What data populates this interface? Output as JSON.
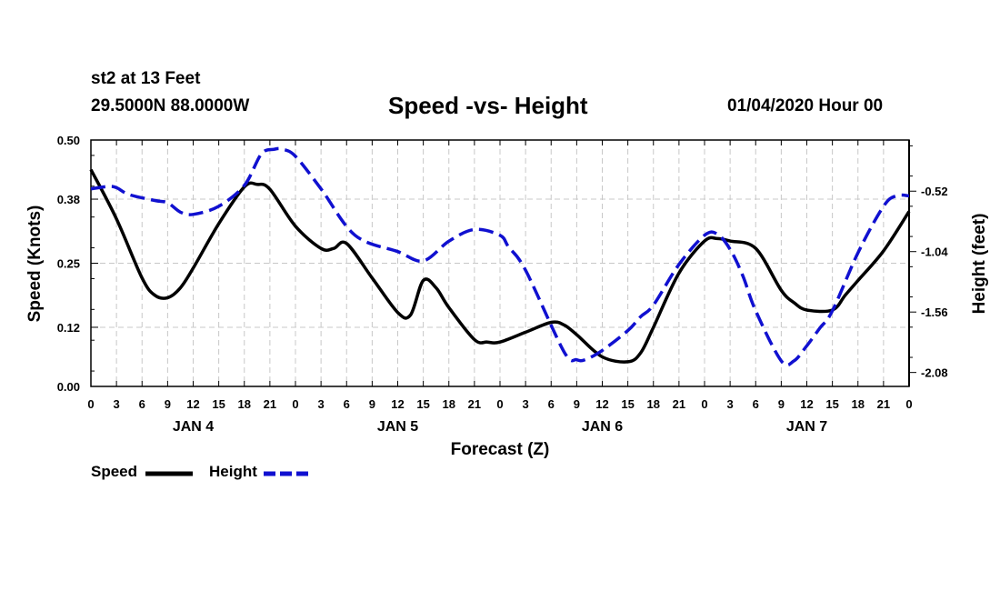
{
  "header": {
    "station": "st2 at 13 Feet",
    "coords": "29.5000N 88.0000W",
    "title": "Speed -vs- Height",
    "date": "01/04/2020 Hour 00"
  },
  "legend": {
    "speed": "Speed",
    "height": "Height"
  },
  "colors": {
    "speed": "#000000",
    "height": "#1010d0",
    "grid": "#c8c8c8"
  },
  "chart_data": {
    "type": "line",
    "title": "Speed -vs- Height",
    "xlabel": "Forecast (Z)",
    "ylabel": "Speed (Knots)",
    "y2label": "Height (feet)",
    "xlim": [
      0,
      96
    ],
    "ylim": [
      0,
      0.5
    ],
    "y2lim": [
      -2.2,
      -0.08
    ],
    "yticks": [
      "0.00",
      "0.12",
      "0.25",
      "0.38",
      "0.50"
    ],
    "y2ticks": [
      "-0.52",
      "-1.04",
      "-1.56",
      "-2.08"
    ],
    "y2tick_values": [
      -0.52,
      -1.04,
      -1.56,
      -2.08
    ],
    "xticks": [
      "0",
      "3",
      "6",
      "9",
      "12",
      "15",
      "18",
      "21",
      "0",
      "3",
      "6",
      "9",
      "12",
      "15",
      "18",
      "21",
      "0",
      "3",
      "6",
      "9",
      "12",
      "15",
      "18",
      "21",
      "0",
      "3",
      "6",
      "9",
      "12",
      "15",
      "18",
      "21",
      "0"
    ],
    "day_labels": [
      {
        "hour": 12,
        "label": "JAN 4"
      },
      {
        "hour": 36,
        "label": "JAN 5"
      },
      {
        "hour": 60,
        "label": "JAN 6"
      },
      {
        "hour": 84,
        "label": "JAN 7"
      }
    ],
    "series": [
      {
        "name": "Speed",
        "axis": "left",
        "style": "solid",
        "x": [
          0,
          3,
          6,
          7.5,
          9,
          10.5,
          12,
          15,
          18,
          19.5,
          21,
          24,
          27,
          28.5,
          30,
          33,
          36,
          37.5,
          39,
          40.5,
          42,
          45,
          46.5,
          48,
          51,
          54,
          55.5,
          57,
          60,
          63,
          64.5,
          66,
          69,
          72,
          73.5,
          75,
          78,
          81,
          82.5,
          84,
          87,
          88.5,
          90,
          93,
          96
        ],
        "values": [
          0.44,
          0.34,
          0.22,
          0.185,
          0.18,
          0.2,
          0.24,
          0.33,
          0.405,
          0.41,
          0.4,
          0.325,
          0.28,
          0.28,
          0.29,
          0.22,
          0.15,
          0.145,
          0.215,
          0.2,
          0.16,
          0.095,
          0.09,
          0.09,
          0.11,
          0.13,
          0.125,
          0.105,
          0.06,
          0.05,
          0.068,
          0.12,
          0.23,
          0.295,
          0.3,
          0.295,
          0.28,
          0.195,
          0.17,
          0.155,
          0.155,
          0.185,
          0.215,
          0.275,
          0.355
        ]
      },
      {
        "name": "Height",
        "axis": "right",
        "style": "dashed",
        "x": [
          0,
          2,
          3,
          4.5,
          7.5,
          9,
          10.5,
          12,
          15,
          18,
          20,
          21.5,
          22.5,
          24,
          27,
          31,
          36,
          39,
          42,
          45,
          48,
          49,
          51,
          55.5,
          57,
          58,
          60,
          63,
          64.5,
          66,
          69,
          72,
          73.5,
          75,
          76.5,
          78,
          81,
          82.5,
          84,
          85.5,
          87,
          90,
          93,
          94.5,
          96
        ],
        "values": [
          -0.5,
          -0.48,
          -0.49,
          -0.55,
          -0.6,
          -0.62,
          -0.7,
          -0.72,
          -0.65,
          -0.47,
          -0.2,
          -0.16,
          -0.16,
          -0.22,
          -0.5,
          -0.9,
          -1.04,
          -1.12,
          -0.95,
          -0.85,
          -0.9,
          -1.0,
          -1.2,
          -1.9,
          -1.97,
          -1.97,
          -1.89,
          -1.72,
          -1.6,
          -1.5,
          -1.15,
          -0.9,
          -0.89,
          -1.02,
          -1.25,
          -1.55,
          -1.98,
          -1.98,
          -1.85,
          -1.7,
          -1.55,
          -1.05,
          -0.65,
          -0.56,
          -0.56
        ]
      }
    ]
  }
}
